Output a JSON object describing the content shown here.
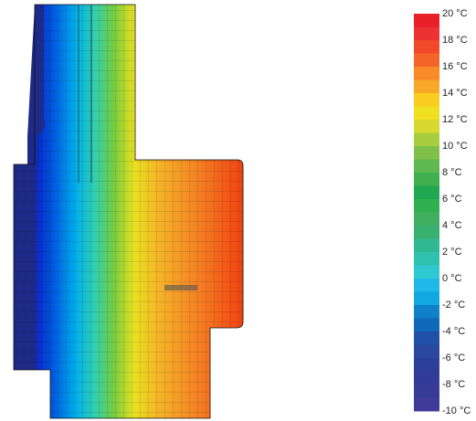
{
  "legend": {
    "labels": [
      "20 °C",
      "18 °C",
      "16 °C",
      "14 °C",
      "12 °C",
      "10 °C",
      "8 °C",
      "6 °C",
      "4 °C",
      "2 °C",
      "0 °C",
      "-2 °C",
      "-4 °C",
      "-6 °C",
      "-8 °C",
      "-10 °C"
    ],
    "colors": [
      "#e8202a",
      "#ec3232",
      "#f04a2a",
      "#f46428",
      "#f88a28",
      "#f8a828",
      "#f8cc20",
      "#f0e020",
      "#d8d830",
      "#a8cc40",
      "#80c048",
      "#60b850",
      "#40b050",
      "#20a850",
      "#30b050",
      "#40b060",
      "#38b070",
      "#30b890",
      "#30c0b0",
      "#30c8d0",
      "#20b8e8",
      "#10a8e0",
      "#1080c8",
      "#1068b8",
      "#2050a8",
      "#2a48a0",
      "#2c409a",
      "#303c98",
      "#383a98",
      "#403a98"
    ]
  }
}
